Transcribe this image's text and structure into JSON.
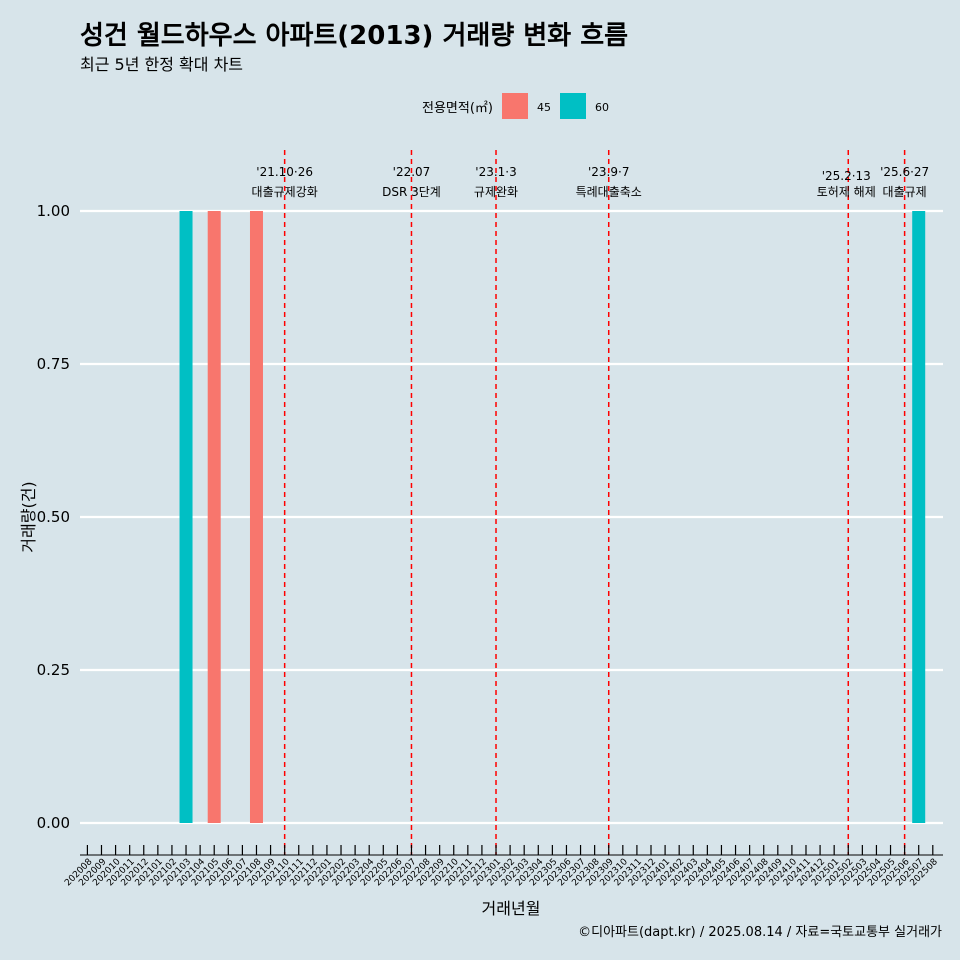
{
  "chart_data": {
    "type": "bar",
    "title": "성건 월드하우스 아파트(2013) 거래량 변화 흐름",
    "subtitle": "최근 5년 한정 확대 차트",
    "xlabel": "거래년월",
    "ylabel": "거래량(건)",
    "caption": "©디아파트(dapt.kr) / 2025.08.14 / 자료=국토교통부 실거래가",
    "ylim": [
      0,
      1
    ],
    "y_ticks": [
      "0.00",
      "0.25",
      "0.50",
      "0.75",
      "1.00"
    ],
    "y_tick_values": [
      0,
      0.25,
      0.5,
      0.75,
      1.0
    ],
    "grid": "horizontal",
    "legend": {
      "title": "전용면적(㎡)",
      "position": "top",
      "items": [
        {
          "label": "45",
          "color": "#f8766d"
        },
        {
          "label": "60",
          "color": "#00bfc4"
        }
      ]
    },
    "categories": [
      "202008",
      "202009",
      "202010",
      "202011",
      "202012",
      "202101",
      "202102",
      "202103",
      "202104",
      "202105",
      "202106",
      "202107",
      "202108",
      "202109",
      "202110",
      "202111",
      "202112",
      "202201",
      "202202",
      "202203",
      "202204",
      "202205",
      "202206",
      "202207",
      "202208",
      "202209",
      "202210",
      "202211",
      "202212",
      "202301",
      "202302",
      "202303",
      "202304",
      "202305",
      "202306",
      "202307",
      "202308",
      "202309",
      "202310",
      "202311",
      "202312",
      "202401",
      "202402",
      "202403",
      "202404",
      "202405",
      "202406",
      "202407",
      "202408",
      "202409",
      "202410",
      "202411",
      "202412",
      "202501",
      "202502",
      "202503",
      "202504",
      "202505",
      "202506",
      "202507",
      "202508"
    ],
    "bars": [
      {
        "month": "202103",
        "series": "60",
        "value": 1
      },
      {
        "month": "202105",
        "series": "45",
        "value": 1
      },
      {
        "month": "202108",
        "series": "45",
        "value": 1
      },
      {
        "month": "202507",
        "series": "60",
        "value": 1
      }
    ],
    "events": [
      {
        "month": "202110",
        "date": "'21.10·26",
        "label": "대출규제강화"
      },
      {
        "month": "202207",
        "date": "'22.07",
        "label": "DSR 3단계"
      },
      {
        "month": "202301",
        "date": "'23.1·3",
        "label": "규제완화"
      },
      {
        "month": "202309",
        "date": "'23.9·7",
        "label": "특례대출축소"
      },
      {
        "month": "202502",
        "date": "'25.2·13",
        "label": "토허제 해제"
      },
      {
        "month": "202506",
        "date": "'25.6·27",
        "label": "대출규제"
      }
    ],
    "event_line_color": "#ff0000"
  }
}
